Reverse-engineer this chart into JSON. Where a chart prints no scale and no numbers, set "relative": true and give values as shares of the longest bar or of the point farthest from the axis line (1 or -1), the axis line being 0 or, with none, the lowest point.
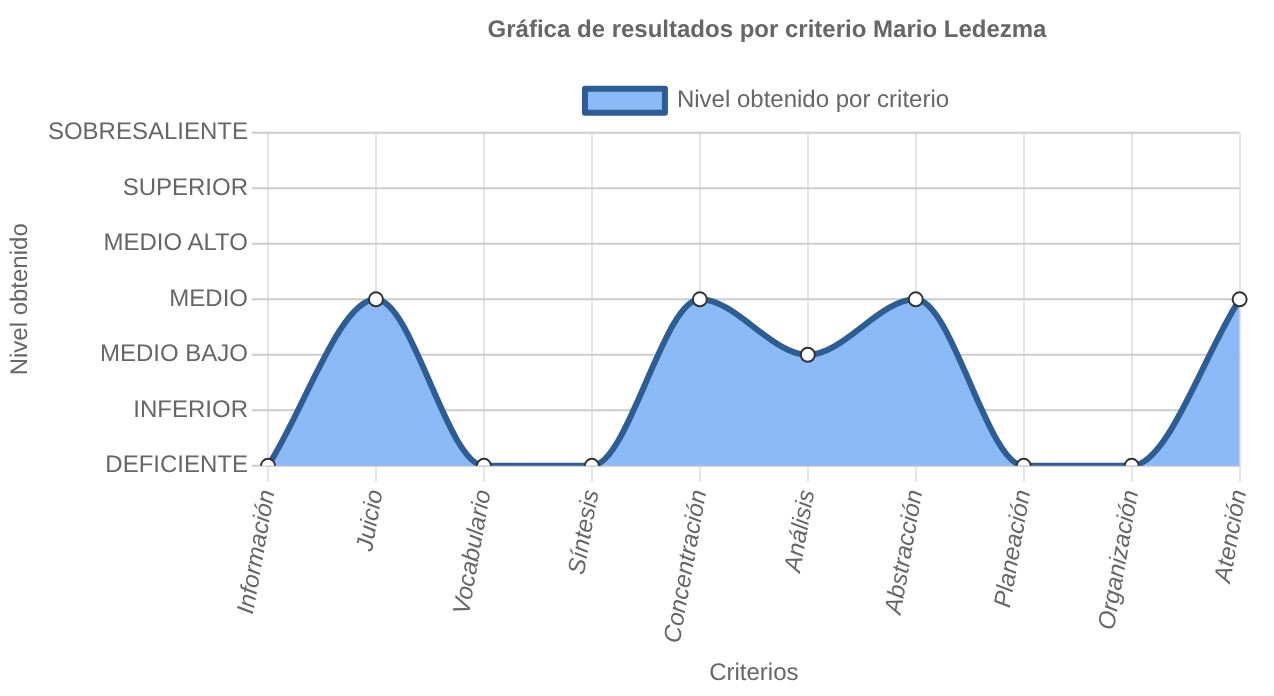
{
  "chart_data": {
    "type": "area",
    "title": "Gráfica de resultados por criterio Mario Ledezma",
    "xlabel": "Criterios",
    "annotations": [
      "Nivel obtenido"
    ],
    "relative": true,
    "categories": [
      "Información",
      "Juicio",
      "Vocabulario",
      "Síntesis",
      "Concentración",
      "Análisis",
      "Abstracción",
      "Planeación",
      "Organización",
      "Atención"
    ],
    "series": [
      {
        "name": "Nivel obtenido por criterio",
        "color": "#2e5d94",
        "values": [
          0,
          1,
          0,
          0,
          1,
          0.667,
          1,
          0,
          0,
          1
        ]
      }
    ],
    "ref_lines": [
      {
        "axis": "y",
        "value": 0,
        "label": "DEFICIENTE",
        "color": "#cccccc"
      },
      {
        "axis": "y",
        "value": 0.333,
        "label": "INFERIOR",
        "color": "#cccccc"
      },
      {
        "axis": "y",
        "value": 0.667,
        "label": "MEDIO BAJO",
        "color": "#cccccc"
      },
      {
        "axis": "y",
        "value": 1,
        "label": "MEDIO",
        "color": "#cccccc"
      },
      {
        "axis": "y",
        "value": 1.333,
        "label": "MEDIO ALTO",
        "color": "#cccccc"
      },
      {
        "axis": "y",
        "value": 1.667,
        "label": "SUPERIOR",
        "color": "#cccccc"
      },
      {
        "axis": "y",
        "value": 2,
        "label": "SOBRESALIENTE",
        "color": "#cccccc"
      }
    ],
    "grid": "x",
    "legend": "top",
    "marker": "circle",
    "line_style": "solid"
  }
}
